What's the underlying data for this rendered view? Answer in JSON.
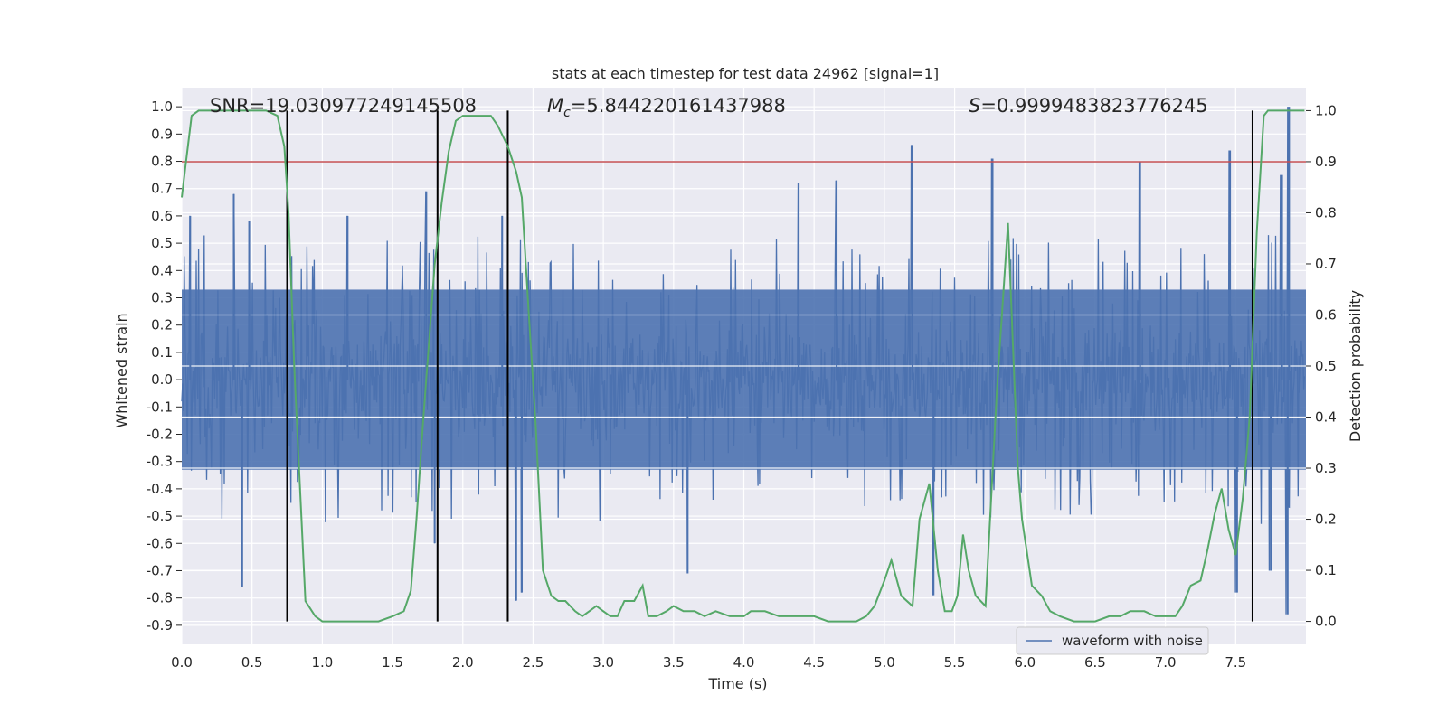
{
  "chart_data": {
    "type": "line",
    "title": "stats at each timestep for test data 24962 [signal=1]",
    "xlabel": "Time (s)",
    "ylabel": "Whitened strain",
    "y2label": "Detection probability",
    "xlim": [
      0.0,
      8.0
    ],
    "ylim": [
      -0.97,
      1.07
    ],
    "y2lim": [
      -0.045,
      1.045
    ],
    "xticks": [
      "0.0",
      "0.5",
      "1.0",
      "1.5",
      "2.0",
      "2.5",
      "3.0",
      "3.5",
      "4.0",
      "4.5",
      "5.0",
      "5.5",
      "6.0",
      "6.5",
      "7.0",
      "7.5"
    ],
    "yticks": [
      "1.0",
      "0.9",
      "0.8",
      "0.7",
      "0.6",
      "0.5",
      "0.4",
      "0.3",
      "0.2",
      "0.1",
      "0.0",
      "-0.1",
      "-0.2",
      "-0.3",
      "-0.4",
      "-0.5",
      "-0.6",
      "-0.7",
      "-0.8",
      "-0.9"
    ],
    "y2ticks": [
      "1.0",
      "0.9",
      "0.8",
      "0.7",
      "0.6",
      "0.5",
      "0.4",
      "0.3",
      "0.2",
      "0.1",
      "0.0"
    ],
    "annotations": {
      "snr": "SNR=19.030977249145508",
      "mc_symbol": "M",
      "mc_sub": "c",
      "mc_value": "=5.844220161437988",
      "s_symbol": "S",
      "s_value": "=0.9999483823776245"
    },
    "threshold": {
      "value": 0.9,
      "axis": "y2",
      "color": "#c44e52"
    },
    "vertical_lines": [
      0.75,
      1.82,
      2.32,
      7.62
    ],
    "series": [
      {
        "name": "waveform with noise",
        "axis": "y",
        "color": "#4c72b0",
        "style": "dense-noise",
        "envelope": {
          "core_low": -0.33,
          "core_high": 0.33,
          "typical_peak": 0.48,
          "max_peak": 1.0,
          "min_trough": -0.86
        },
        "notable_peaks": [
          {
            "x": 0.06,
            "y": 0.6
          },
          {
            "x": 0.37,
            "y": 0.68
          },
          {
            "x": 0.43,
            "y": -0.76
          },
          {
            "x": 0.48,
            "y": 0.58
          },
          {
            "x": 1.18,
            "y": 0.6
          },
          {
            "x": 1.74,
            "y": 0.69
          },
          {
            "x": 1.8,
            "y": -0.6
          },
          {
            "x": 2.28,
            "y": 0.6
          },
          {
            "x": 2.38,
            "y": -0.81
          },
          {
            "x": 2.42,
            "y": -0.78
          },
          {
            "x": 3.6,
            "y": -0.71
          },
          {
            "x": 4.39,
            "y": 0.72
          },
          {
            "x": 4.66,
            "y": 0.73
          },
          {
            "x": 5.2,
            "y": 0.86
          },
          {
            "x": 5.35,
            "y": -0.79
          },
          {
            "x": 5.77,
            "y": 0.81
          },
          {
            "x": 6.82,
            "y": 0.8
          },
          {
            "x": 7.46,
            "y": 0.84
          },
          {
            "x": 7.51,
            "y": -0.78
          },
          {
            "x": 7.75,
            "y": -0.7
          },
          {
            "x": 7.83,
            "y": 0.75
          },
          {
            "x": 7.88,
            "y": 1.0
          },
          {
            "x": 7.87,
            "y": -0.86
          }
        ]
      },
      {
        "name": "",
        "axis": "y2",
        "color": "#55a868",
        "x": [
          0.0,
          0.03,
          0.07,
          0.12,
          0.2,
          0.3,
          0.4,
          0.5,
          0.55,
          0.6,
          0.68,
          0.73,
          0.76,
          0.8,
          0.88,
          0.95,
          1.0,
          1.1,
          1.2,
          1.3,
          1.4,
          1.5,
          1.58,
          1.63,
          1.67,
          1.72,
          1.76,
          1.8,
          1.85,
          1.9,
          1.95,
          2.0,
          2.1,
          2.2,
          2.25,
          2.32,
          2.38,
          2.42,
          2.47,
          2.52,
          2.57,
          2.63,
          2.68,
          2.73,
          2.8,
          2.85,
          2.9,
          2.95,
          3.0,
          3.05,
          3.1,
          3.15,
          3.22,
          3.28,
          3.32,
          3.38,
          3.45,
          3.5,
          3.57,
          3.65,
          3.72,
          3.8,
          3.9,
          4.0,
          4.05,
          4.15,
          4.25,
          4.3,
          4.4,
          4.5,
          4.6,
          4.7,
          4.8,
          4.87,
          4.93,
          5.0,
          5.05,
          5.12,
          5.2,
          5.25,
          5.32,
          5.38,
          5.43,
          5.48,
          5.52,
          5.56,
          5.6,
          5.65,
          5.72,
          5.8,
          5.88,
          5.95,
          5.98,
          6.05,
          6.12,
          6.18,
          6.25,
          6.35,
          6.5,
          6.6,
          6.68,
          6.75,
          6.85,
          6.93,
          7.0,
          7.07,
          7.12,
          7.18,
          7.25,
          7.3,
          7.35,
          7.4,
          7.45,
          7.5,
          7.55,
          7.6,
          7.65,
          7.7,
          7.73,
          7.78,
          7.85,
          7.92,
          7.99
        ],
        "values": [
          0.83,
          0.9,
          0.99,
          1.0,
          1.0,
          1.0,
          1.0,
          1.0,
          1.0,
          1.0,
          0.99,
          0.93,
          0.8,
          0.5,
          0.04,
          0.01,
          0.0,
          0.0,
          0.0,
          0.0,
          0.0,
          0.01,
          0.02,
          0.06,
          0.2,
          0.4,
          0.55,
          0.7,
          0.82,
          0.92,
          0.98,
          0.99,
          0.99,
          0.99,
          0.97,
          0.93,
          0.88,
          0.83,
          0.6,
          0.38,
          0.1,
          0.05,
          0.04,
          0.04,
          0.02,
          0.01,
          0.02,
          0.03,
          0.02,
          0.01,
          0.01,
          0.04,
          0.04,
          0.07,
          0.01,
          0.01,
          0.02,
          0.03,
          0.02,
          0.02,
          0.01,
          0.02,
          0.01,
          0.01,
          0.02,
          0.02,
          0.01,
          0.01,
          0.01,
          0.01,
          0.0,
          0.0,
          0.0,
          0.01,
          0.03,
          0.08,
          0.12,
          0.05,
          0.03,
          0.2,
          0.27,
          0.1,
          0.02,
          0.02,
          0.05,
          0.17,
          0.1,
          0.05,
          0.03,
          0.45,
          0.78,
          0.3,
          0.2,
          0.07,
          0.05,
          0.02,
          0.01,
          0.0,
          0.0,
          0.01,
          0.01,
          0.02,
          0.02,
          0.01,
          0.01,
          0.01,
          0.03,
          0.07,
          0.08,
          0.14,
          0.21,
          0.26,
          0.18,
          0.13,
          0.24,
          0.4,
          0.76,
          0.99,
          1.0,
          1.0,
          1.0,
          1.0,
          1.0
        ]
      }
    ],
    "legend": {
      "entries": [
        "waveform with noise"
      ],
      "placement": "bottom-right"
    },
    "grid": true,
    "background": "#eaeaf2"
  }
}
